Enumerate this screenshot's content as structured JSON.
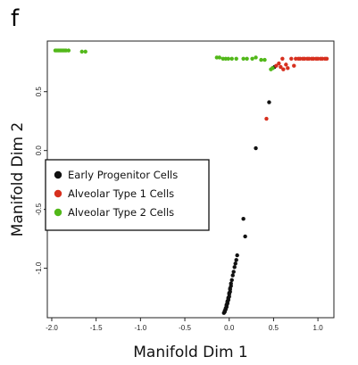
{
  "panel_label": "f",
  "chart_data": {
    "type": "scatter",
    "title": "",
    "xlabel": "Manifold Dim 1",
    "ylabel": "Manifold Dim 2",
    "xlim": [
      -2.05,
      1.18
    ],
    "ylim": [
      -1.42,
      0.93
    ],
    "xticks": [
      -2.0,
      -1.5,
      -1.0,
      -0.5,
      0.0,
      0.5,
      1.0
    ],
    "xtick_labels": [
      "-2.0",
      "-1.5",
      "-1.0",
      "-0.5",
      "0.0",
      "0.5",
      "1.0"
    ],
    "yticks": [
      -1.0,
      -0.5,
      0.0,
      0.5
    ],
    "ytick_labels": [
      "-1.0",
      "-0.5",
      "0.0",
      "0.5"
    ],
    "legend_position": "left",
    "series": [
      {
        "name": "Early Progenitor Cells",
        "color": "#111111",
        "points": [
          [
            -0.06,
            -1.38
          ],
          [
            -0.05,
            -1.37
          ],
          [
            -0.05,
            -1.36
          ],
          [
            -0.04,
            -1.35
          ],
          [
            -0.04,
            -1.34
          ],
          [
            -0.03,
            -1.33
          ],
          [
            -0.03,
            -1.32
          ],
          [
            -0.03,
            -1.31
          ],
          [
            -0.02,
            -1.3
          ],
          [
            -0.02,
            -1.29
          ],
          [
            -0.02,
            -1.28
          ],
          [
            -0.01,
            -1.27
          ],
          [
            -0.01,
            -1.26
          ],
          [
            -0.01,
            -1.25
          ],
          [
            0.0,
            -1.24
          ],
          [
            0.0,
            -1.22
          ],
          [
            0.0,
            -1.21
          ],
          [
            0.01,
            -1.2
          ],
          [
            0.01,
            -1.18
          ],
          [
            0.01,
            -1.17
          ],
          [
            0.02,
            -1.15
          ],
          [
            0.02,
            -1.13
          ],
          [
            0.03,
            -1.1
          ],
          [
            0.04,
            -1.06
          ],
          [
            0.05,
            -1.03
          ],
          [
            0.06,
            -0.99
          ],
          [
            0.07,
            -0.96
          ],
          [
            0.08,
            -0.93
          ],
          [
            0.09,
            -0.89
          ],
          [
            0.16,
            -0.58
          ],
          [
            0.18,
            -0.73
          ],
          [
            0.3,
            0.02
          ],
          [
            0.45,
            0.41
          ],
          [
            0.49,
            0.7
          ],
          [
            0.51,
            0.71
          ]
        ]
      },
      {
        "name": "Alveolar Type 1 Cells",
        "color": "#d7301f",
        "points": [
          [
            0.42,
            0.27
          ],
          [
            0.53,
            0.72
          ],
          [
            0.56,
            0.74
          ],
          [
            0.58,
            0.71
          ],
          [
            0.6,
            0.78
          ],
          [
            0.61,
            0.69
          ],
          [
            0.64,
            0.73
          ],
          [
            0.66,
            0.7
          ],
          [
            0.7,
            0.78
          ],
          [
            0.73,
            0.72
          ],
          [
            0.75,
            0.78
          ],
          [
            0.78,
            0.78
          ],
          [
            0.8,
            0.78
          ],
          [
            0.83,
            0.78
          ],
          [
            0.85,
            0.78
          ],
          [
            0.88,
            0.78
          ],
          [
            0.9,
            0.78
          ],
          [
            0.93,
            0.78
          ],
          [
            0.95,
            0.78
          ],
          [
            0.98,
            0.78
          ],
          [
            1.0,
            0.78
          ],
          [
            1.03,
            0.78
          ],
          [
            1.05,
            0.78
          ],
          [
            1.08,
            0.78
          ],
          [
            1.1,
            0.78
          ]
        ]
      },
      {
        "name": "Alveolar Type 2 Cells",
        "color": "#52b81a",
        "points": [
          [
            -1.96,
            0.85
          ],
          [
            -1.94,
            0.85
          ],
          [
            -1.92,
            0.85
          ],
          [
            -1.9,
            0.85
          ],
          [
            -1.88,
            0.85
          ],
          [
            -1.86,
            0.85
          ],
          [
            -1.84,
            0.85
          ],
          [
            -1.81,
            0.85
          ],
          [
            -1.66,
            0.84
          ],
          [
            -1.62,
            0.84
          ],
          [
            -0.14,
            0.79
          ],
          [
            -0.11,
            0.79
          ],
          [
            -0.07,
            0.78
          ],
          [
            -0.04,
            0.78
          ],
          [
            -0.01,
            0.78
          ],
          [
            0.03,
            0.78
          ],
          [
            0.08,
            0.78
          ],
          [
            0.16,
            0.78
          ],
          [
            0.2,
            0.78
          ],
          [
            0.26,
            0.78
          ],
          [
            0.3,
            0.79
          ],
          [
            0.36,
            0.77
          ],
          [
            0.4,
            0.77
          ],
          [
            0.47,
            0.69
          ],
          [
            0.49,
            0.7
          ]
        ]
      }
    ]
  }
}
